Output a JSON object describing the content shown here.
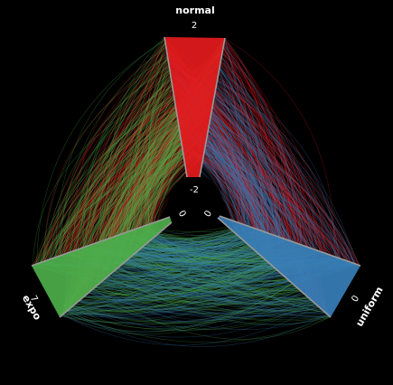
{
  "chart_data": {
    "type": "hive_plot",
    "axes": [
      {
        "name": "normal",
        "max_tick": "2",
        "min_tick": "-2"
      },
      {
        "name": "expo",
        "max_tick": "7",
        "min_tick": "0"
      },
      {
        "name": "uniform",
        "max_tick": "0",
        "min_tick": "0"
      }
    ],
    "series": [
      {
        "axis": "normal",
        "color": "#e41a1c"
      },
      {
        "axis": "expo",
        "color": "#4daf4a"
      },
      {
        "axis": "uniform",
        "color": "#377eb8"
      }
    ],
    "background": "#000000",
    "axis_color": "#999999"
  }
}
